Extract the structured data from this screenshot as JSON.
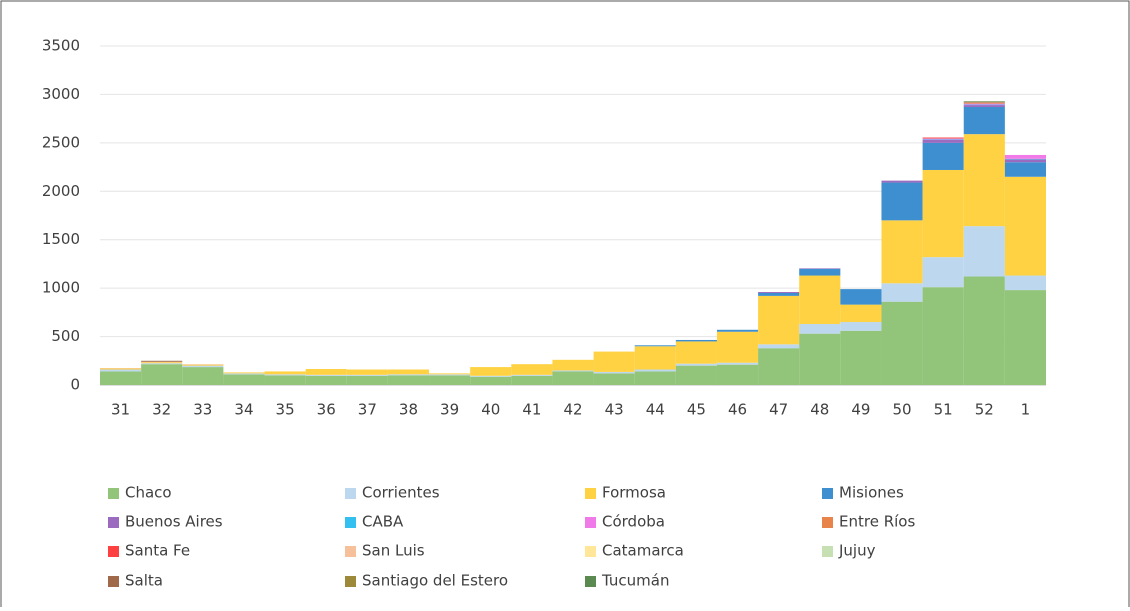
{
  "chart_data": {
    "type": "stacked_bar",
    "categories": [
      "31",
      "32",
      "33",
      "34",
      "35",
      "36",
      "37",
      "38",
      "39",
      "40",
      "41",
      "42",
      "43",
      "44",
      "45",
      "46",
      "47",
      "48",
      "49",
      "50",
      "51",
      "52",
      "1"
    ],
    "ylim": [
      0,
      3500
    ],
    "yticks": [
      0,
      500,
      1000,
      1500,
      2000,
      2500,
      3000,
      3500
    ],
    "grid": true,
    "series": [
      {
        "name": "Chaco",
        "color": "#92c47a",
        "values": [
          140,
          215,
          185,
          110,
          100,
          95,
          95,
          100,
          100,
          85,
          95,
          140,
          120,
          140,
          200,
          210,
          380,
          530,
          560,
          860,
          1010,
          1120,
          980
        ]
      },
      {
        "name": "Corrientes",
        "color": "#bdd7ee",
        "values": [
          20,
          10,
          15,
          10,
          10,
          10,
          10,
          10,
          10,
          10,
          10,
          10,
          15,
          20,
          20,
          20,
          40,
          100,
          90,
          190,
          310,
          520,
          150
        ]
      },
      {
        "name": "Formosa",
        "color": "#ffd243",
        "values": [
          10,
          10,
          10,
          10,
          30,
          60,
          55,
          50,
          10,
          90,
          110,
          110,
          210,
          240,
          230,
          320,
          500,
          500,
          180,
          650,
          900,
          950,
          1020
        ]
      },
      {
        "name": "Misiones",
        "color": "#3d8fd0",
        "values": [
          0,
          0,
          0,
          0,
          0,
          0,
          0,
          0,
          0,
          0,
          0,
          0,
          0,
          10,
          15,
          20,
          30,
          70,
          160,
          390,
          280,
          280,
          150
        ]
      },
      {
        "name": "Buenos Aires",
        "color": "#9b6bbf",
        "values": [
          0,
          0,
          0,
          0,
          0,
          0,
          0,
          0,
          0,
          0,
          0,
          0,
          0,
          0,
          0,
          0,
          10,
          5,
          0,
          20,
          30,
          20,
          30
        ]
      },
      {
        "name": "CABA",
        "color": "#33c0f0",
        "values": [
          0,
          0,
          0,
          0,
          0,
          0,
          0,
          0,
          0,
          0,
          0,
          0,
          0,
          0,
          0,
          0,
          0,
          0,
          0,
          0,
          5,
          5,
          5
        ]
      },
      {
        "name": "Córdoba",
        "color": "#f07be8",
        "values": [
          0,
          0,
          0,
          0,
          0,
          0,
          0,
          0,
          0,
          0,
          0,
          0,
          0,
          0,
          0,
          0,
          0,
          0,
          0,
          0,
          10,
          10,
          40
        ]
      },
      {
        "name": "Entre Ríos",
        "color": "#e8844a",
        "values": [
          0,
          0,
          0,
          0,
          0,
          0,
          0,
          0,
          0,
          0,
          0,
          0,
          0,
          0,
          0,
          0,
          0,
          0,
          0,
          0,
          5,
          10,
          0
        ]
      },
      {
        "name": "Santa Fe",
        "color": "#ff4040",
        "values": [
          0,
          0,
          0,
          0,
          0,
          0,
          0,
          0,
          0,
          0,
          0,
          0,
          0,
          0,
          0,
          0,
          0,
          0,
          0,
          0,
          5,
          0,
          0
        ]
      },
      {
        "name": "San Luis",
        "color": "#f5c09a",
        "values": [
          5,
          5,
          5,
          0,
          0,
          0,
          0,
          0,
          0,
          0,
          0,
          0,
          0,
          0,
          0,
          0,
          0,
          0,
          0,
          0,
          0,
          0,
          0
        ]
      },
      {
        "name": "Catamarca",
        "color": "#ffe699",
        "values": [
          0,
          0,
          0,
          0,
          0,
          0,
          0,
          0,
          0,
          0,
          0,
          0,
          0,
          0,
          0,
          0,
          0,
          0,
          0,
          0,
          0,
          0,
          0
        ]
      },
      {
        "name": "Jujuy",
        "color": "#c6e0b4",
        "values": [
          0,
          0,
          0,
          0,
          0,
          0,
          0,
          0,
          0,
          0,
          0,
          0,
          0,
          0,
          0,
          0,
          0,
          0,
          0,
          0,
          0,
          0,
          0
        ]
      },
      {
        "name": "Salta",
        "color": "#a0694a",
        "values": [
          0,
          10,
          0,
          0,
          0,
          0,
          0,
          0,
          0,
          0,
          0,
          0,
          0,
          0,
          0,
          0,
          0,
          0,
          0,
          0,
          0,
          5,
          0
        ]
      },
      {
        "name": "Santiago del Estero",
        "color": "#9c8a3a",
        "values": [
          0,
          0,
          0,
          0,
          0,
          0,
          0,
          0,
          0,
          0,
          0,
          0,
          0,
          0,
          0,
          0,
          0,
          0,
          0,
          0,
          0,
          5,
          0
        ]
      },
      {
        "name": "Tucumán",
        "color": "#5a8a50",
        "values": [
          0,
          0,
          0,
          0,
          0,
          0,
          0,
          0,
          0,
          0,
          0,
          0,
          0,
          0,
          0,
          0,
          0,
          0,
          0,
          0,
          0,
          5,
          0
        ]
      }
    ]
  }
}
